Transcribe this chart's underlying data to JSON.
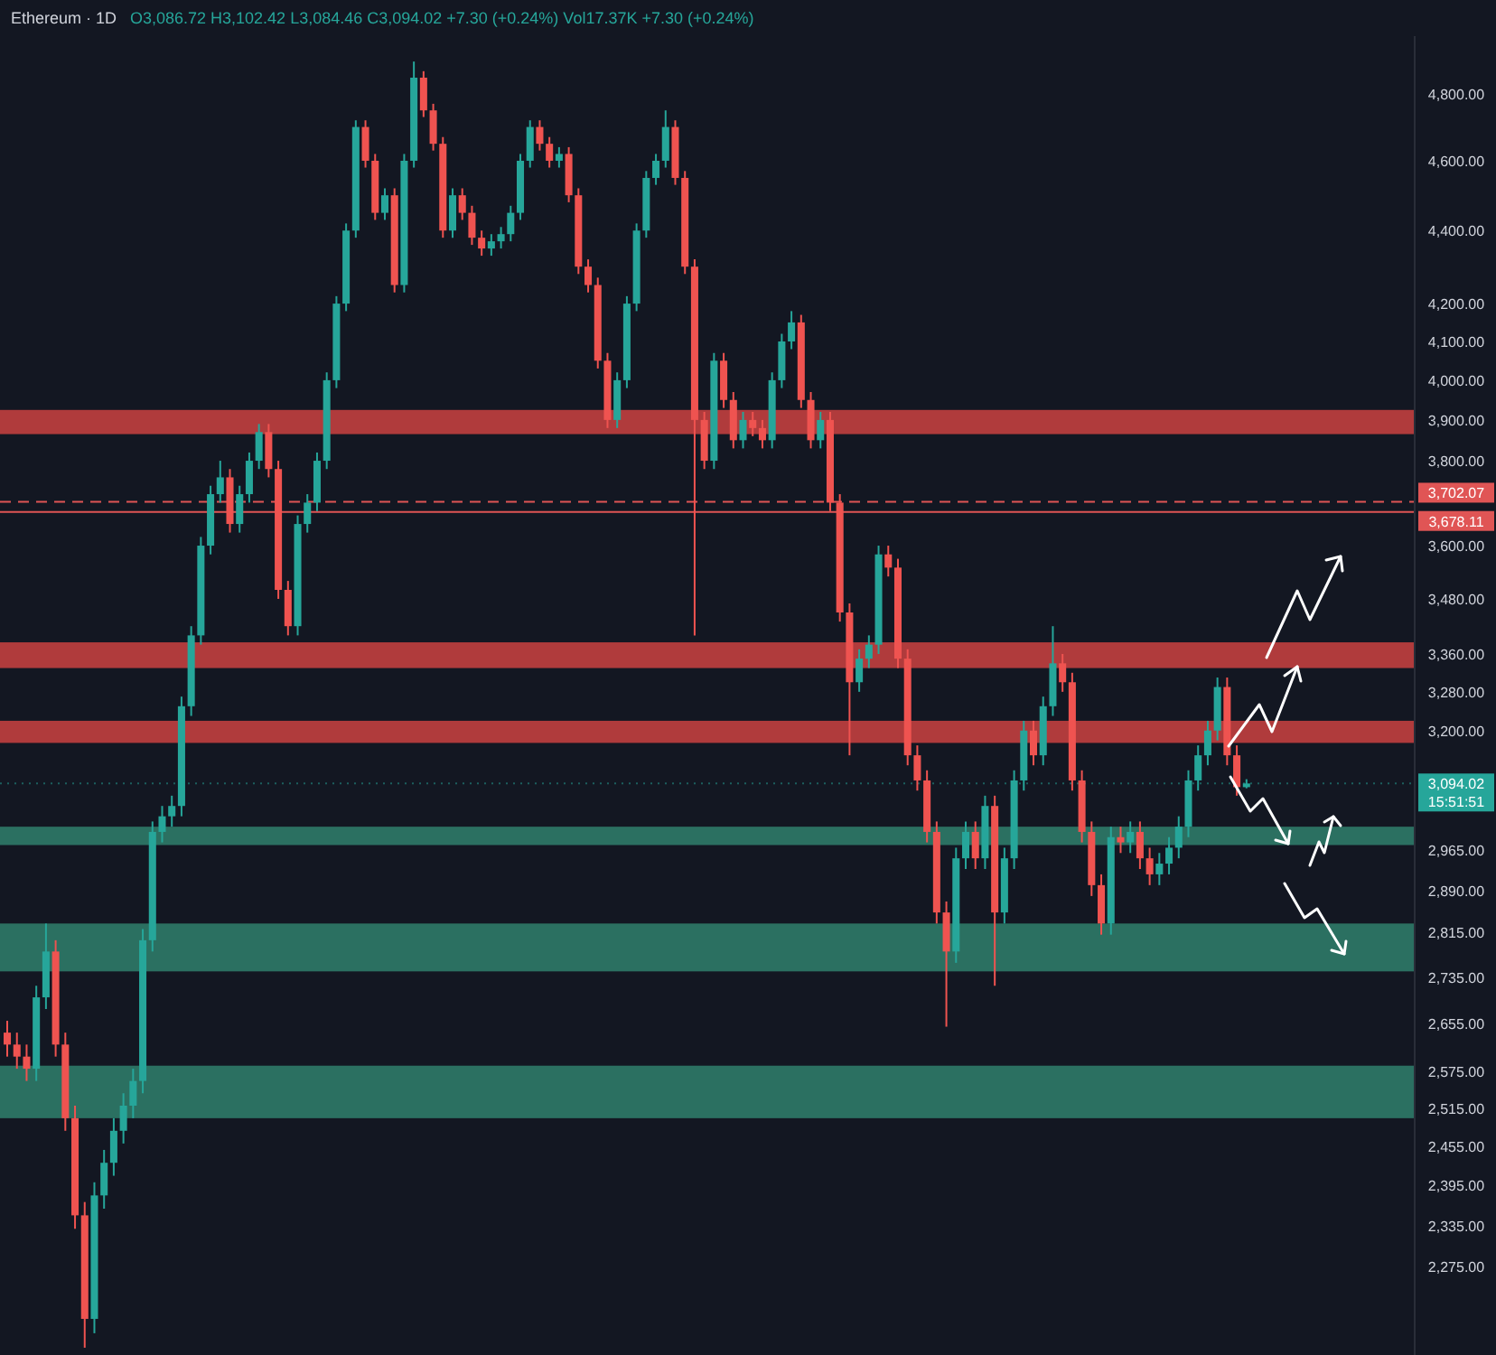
{
  "chart_data": {
    "type": "candlestick",
    "title": "Ethereum · 1D",
    "subtitle": "O3,086.72 H3,102.42 L3,084.46 C3,094.02 +7.30 (+0.24%) Vol17.37K +7.30 (+0.24%)",
    "log": true,
    "tick_labels": "y",
    "categories": [
      null,
      null,
      null,
      null,
      null,
      null,
      null,
      null,
      null,
      null,
      null,
      null,
      null,
      null,
      null,
      null,
      null,
      null,
      null,
      null,
      null,
      null,
      null,
      null,
      null,
      null,
      null,
      null,
      null,
      null,
      null,
      null,
      null,
      null,
      null,
      null,
      null,
      null,
      null,
      null,
      null,
      null,
      null,
      null,
      null,
      null,
      null,
      null,
      null,
      null,
      null,
      null,
      null,
      null,
      null,
      null,
      null,
      null,
      null,
      null,
      null,
      null,
      null,
      null,
      null,
      null,
      null,
      null,
      null,
      null,
      null,
      null,
      null,
      null,
      null,
      null,
      null,
      null,
      null,
      null,
      null,
      null,
      null,
      null,
      null,
      null,
      null,
      null,
      null,
      null,
      null,
      null,
      null,
      null,
      null,
      null,
      null,
      null,
      null,
      null,
      null,
      null,
      null,
      null,
      null,
      null,
      null,
      null,
      null,
      null,
      null,
      null,
      null,
      null,
      null,
      null,
      null,
      null,
      null,
      null,
      null,
      null,
      null,
      null,
      null,
      null,
      null,
      null,
      null,
      null,
      null,
      null,
      null,
      null,
      null,
      null,
      null,
      null,
      null,
      null,
      null,
      null,
      null,
      null,
      null,
      null
    ],
    "ohlc": [
      [
        2640,
        2660,
        2600,
        2620
      ],
      [
        2620,
        2640,
        2580,
        2600
      ],
      [
        2600,
        2620,
        2560,
        2580
      ],
      [
        2580,
        2720,
        2560,
        2700
      ],
      [
        2700,
        2830,
        2680,
        2780
      ],
      [
        2780,
        2800,
        2600,
        2620
      ],
      [
        2620,
        2640,
        2480,
        2500
      ],
      [
        2500,
        2520,
        2330,
        2350
      ],
      [
        2350,
        2370,
        2160,
        2200
      ],
      [
        2200,
        2400,
        2180,
        2380
      ],
      [
        2380,
        2450,
        2360,
        2430
      ],
      [
        2430,
        2500,
        2410,
        2480
      ],
      [
        2480,
        2540,
        2460,
        2520
      ],
      [
        2520,
        2580,
        2500,
        2560
      ],
      [
        2560,
        2820,
        2540,
        2800
      ],
      [
        2800,
        3020,
        2780,
        3000
      ],
      [
        3000,
        3050,
        2980,
        3030
      ],
      [
        3030,
        3070,
        3010,
        3050
      ],
      [
        3050,
        3270,
        3030,
        3250
      ],
      [
        3250,
        3420,
        3230,
        3400
      ],
      [
        3400,
        3620,
        3380,
        3600
      ],
      [
        3600,
        3740,
        3580,
        3720
      ],
      [
        3720,
        3800,
        3700,
        3760
      ],
      [
        3760,
        3780,
        3630,
        3650
      ],
      [
        3650,
        3740,
        3630,
        3720
      ],
      [
        3720,
        3820,
        3700,
        3800
      ],
      [
        3800,
        3890,
        3780,
        3870
      ],
      [
        3870,
        3890,
        3760,
        3780
      ],
      [
        3780,
        3800,
        3480,
        3500
      ],
      [
        3500,
        3520,
        3400,
        3420
      ],
      [
        3420,
        3670,
        3400,
        3650
      ],
      [
        3650,
        3720,
        3630,
        3700
      ],
      [
        3700,
        3820,
        3680,
        3800
      ],
      [
        3800,
        4020,
        3780,
        4000
      ],
      [
        4000,
        4220,
        3980,
        4200
      ],
      [
        4200,
        4420,
        4180,
        4400
      ],
      [
        4400,
        4720,
        4380,
        4700
      ],
      [
        4700,
        4720,
        4580,
        4600
      ],
      [
        4600,
        4620,
        4430,
        4450
      ],
      [
        4450,
        4520,
        4430,
        4500
      ],
      [
        4500,
        4520,
        4230,
        4250
      ],
      [
        4250,
        4620,
        4230,
        4600
      ],
      [
        4600,
        4900,
        4580,
        4850
      ],
      [
        4850,
        4870,
        4730,
        4750
      ],
      [
        4750,
        4770,
        4630,
        4650
      ],
      [
        4650,
        4670,
        4380,
        4400
      ],
      [
        4400,
        4520,
        4380,
        4500
      ],
      [
        4500,
        4520,
        4430,
        4450
      ],
      [
        4450,
        4470,
        4360,
        4380
      ],
      [
        4380,
        4400,
        4330,
        4350
      ],
      [
        4350,
        4390,
        4330,
        4370
      ],
      [
        4370,
        4410,
        4350,
        4390
      ],
      [
        4390,
        4470,
        4370,
        4450
      ],
      [
        4450,
        4620,
        4430,
        4600
      ],
      [
        4600,
        4720,
        4580,
        4700
      ],
      [
        4700,
        4720,
        4630,
        4650
      ],
      [
        4650,
        4670,
        4580,
        4600
      ],
      [
        4600,
        4640,
        4580,
        4620
      ],
      [
        4620,
        4640,
        4480,
        4500
      ],
      [
        4500,
        4520,
        4280,
        4300
      ],
      [
        4300,
        4320,
        4230,
        4250
      ],
      [
        4250,
        4270,
        4030,
        4050
      ],
      [
        4050,
        4070,
        3880,
        3900
      ],
      [
        3900,
        4020,
        3880,
        4000
      ],
      [
        4000,
        4220,
        3980,
        4200
      ],
      [
        4200,
        4420,
        4180,
        4400
      ],
      [
        4400,
        4570,
        4380,
        4550
      ],
      [
        4550,
        4620,
        4530,
        4600
      ],
      [
        4600,
        4750,
        4580,
        4700
      ],
      [
        4700,
        4720,
        4530,
        4550
      ],
      [
        4550,
        4570,
        4280,
        4300
      ],
      [
        4300,
        4320,
        3400,
        3900
      ],
      [
        3900,
        3920,
        3780,
        3800
      ],
      [
        3800,
        4070,
        3780,
        4050
      ],
      [
        4050,
        4070,
        3930,
        3950
      ],
      [
        3950,
        3970,
        3830,
        3850
      ],
      [
        3850,
        3920,
        3830,
        3900
      ],
      [
        3900,
        3920,
        3860,
        3880
      ],
      [
        3880,
        3900,
        3830,
        3850
      ],
      [
        3850,
        4020,
        3830,
        4000
      ],
      [
        4000,
        4120,
        3980,
        4100
      ],
      [
        4100,
        4180,
        4080,
        4150
      ],
      [
        4150,
        4170,
        3930,
        3950
      ],
      [
        3950,
        3970,
        3830,
        3850
      ],
      [
        3850,
        3920,
        3830,
        3900
      ],
      [
        3900,
        3920,
        3680,
        3700
      ],
      [
        3700,
        3720,
        3430,
        3450
      ],
      [
        3450,
        3470,
        3150,
        3300
      ],
      [
        3300,
        3370,
        3280,
        3350
      ],
      [
        3350,
        3400,
        3330,
        3380
      ],
      [
        3380,
        3600,
        3360,
        3580
      ],
      [
        3580,
        3600,
        3530,
        3550
      ],
      [
        3550,
        3570,
        3330,
        3350
      ],
      [
        3350,
        3370,
        3130,
        3150
      ],
      [
        3150,
        3170,
        3080,
        3100
      ],
      [
        3100,
        3120,
        2980,
        3000
      ],
      [
        3000,
        3020,
        2830,
        2850
      ],
      [
        2850,
        2870,
        2650,
        2780
      ],
      [
        2780,
        2970,
        2760,
        2950
      ],
      [
        2950,
        3020,
        2930,
        3000
      ],
      [
        3000,
        3020,
        2930,
        2950
      ],
      [
        2950,
        3070,
        2930,
        3050
      ],
      [
        3050,
        3070,
        2720,
        2850
      ],
      [
        2850,
        2970,
        2830,
        2950
      ],
      [
        2950,
        3120,
        2930,
        3100
      ],
      [
        3100,
        3220,
        3080,
        3200
      ],
      [
        3200,
        3220,
        3130,
        3150
      ],
      [
        3150,
        3270,
        3130,
        3250
      ],
      [
        3250,
        3420,
        3230,
        3340
      ],
      [
        3340,
        3360,
        3280,
        3300
      ],
      [
        3300,
        3320,
        3080,
        3100
      ],
      [
        3100,
        3120,
        2980,
        3000
      ],
      [
        3000,
        3020,
        2880,
        2900
      ],
      [
        2900,
        2920,
        2810,
        2830
      ],
      [
        2830,
        3010,
        2810,
        2990
      ],
      [
        2990,
        3010,
        2960,
        2980
      ],
      [
        2980,
        3020,
        2960,
        3000
      ],
      [
        3000,
        3020,
        2930,
        2950
      ],
      [
        2950,
        2970,
        2900,
        2920
      ],
      [
        2920,
        2960,
        2900,
        2940
      ],
      [
        2940,
        2990,
        2920,
        2970
      ],
      [
        2970,
        3030,
        2950,
        3010
      ],
      [
        3010,
        3120,
        2990,
        3100
      ],
      [
        3100,
        3170,
        3080,
        3150
      ],
      [
        3150,
        3220,
        3130,
        3200
      ],
      [
        3200,
        3310,
        3180,
        3290
      ],
      [
        3290,
        3310,
        3130,
        3150
      ],
      [
        3150,
        3170,
        3070,
        3086.72
      ],
      [
        3086.72,
        3102.42,
        3084.46,
        3094.02
      ],
      null,
      null,
      null,
      null,
      null,
      null,
      null,
      null,
      null,
      null,
      null,
      null,
      null,
      null,
      null,
      null,
      null
    ],
    "ylim": [
      2150,
      4980
    ],
    "yticks": [
      {
        "value": 4800,
        "label": "4,800.00"
      },
      {
        "value": 4600,
        "label": "4,600.00"
      },
      {
        "value": 4400,
        "label": "4,400.00"
      },
      {
        "value": 4200,
        "label": "4,200.00"
      },
      {
        "value": 4100,
        "label": "4,100.00"
      },
      {
        "value": 4000,
        "label": "4,000.00"
      },
      {
        "value": 3900,
        "label": "3,900.00"
      },
      {
        "value": 3800,
        "label": "3,800.00"
      },
      {
        "value": 3600,
        "label": "3,600.00"
      },
      {
        "value": 3480,
        "label": "3,480.00"
      },
      {
        "value": 3360,
        "label": "3,360.00"
      },
      {
        "value": 3280,
        "label": "3,280.00"
      },
      {
        "value": 3200,
        "label": "3,200.00"
      },
      {
        "value": 2965,
        "label": "2,965.00"
      },
      {
        "value": 2890,
        "label": "2,890.00"
      },
      {
        "value": 2815,
        "label": "2,815.00"
      },
      {
        "value": 2735,
        "label": "2,735.00"
      },
      {
        "value": 2655,
        "label": "2,655.00"
      },
      {
        "value": 2575,
        "label": "2,575.00"
      },
      {
        "value": 2515,
        "label": "2,515.00"
      },
      {
        "value": 2455,
        "label": "2,455.00"
      },
      {
        "value": 2395,
        "label": "2,395.00"
      },
      {
        "value": 2335,
        "label": "2,335.00"
      },
      {
        "value": 2275,
        "label": "2,275.00"
      }
    ],
    "bands": [
      {
        "axis": "y",
        "from": 3865,
        "to": 3925,
        "color": "#c23f3f"
      },
      {
        "axis": "y",
        "from": 3330,
        "to": 3385,
        "color": "#c23f3f"
      },
      {
        "axis": "y",
        "from": 3175,
        "to": 3220,
        "color": "#c23f3f"
      },
      {
        "axis": "y",
        "from": 2975,
        "to": 3010,
        "color": "#2f7a68"
      },
      {
        "axis": "y",
        "from": 2745,
        "to": 2830,
        "color": "#2f7a68"
      },
      {
        "axis": "y",
        "from": 2500,
        "to": 2585,
        "color": "#2f7a68"
      }
    ],
    "ref_lines": [
      {
        "axis": "y",
        "value": 3702.07,
        "label": "3,702.07",
        "color": "#e05555",
        "line_style": "dashed"
      },
      {
        "axis": "y",
        "value": 3678.11,
        "label": "3,678.11",
        "color": "#e05555",
        "line_style": "solid"
      },
      {
        "axis": "y",
        "value": 3094.02,
        "label": "3,094.02",
        "color": "#26a69a",
        "line_style": "dotted"
      }
    ],
    "annotations": [
      "15:51:51"
    ]
  }
}
